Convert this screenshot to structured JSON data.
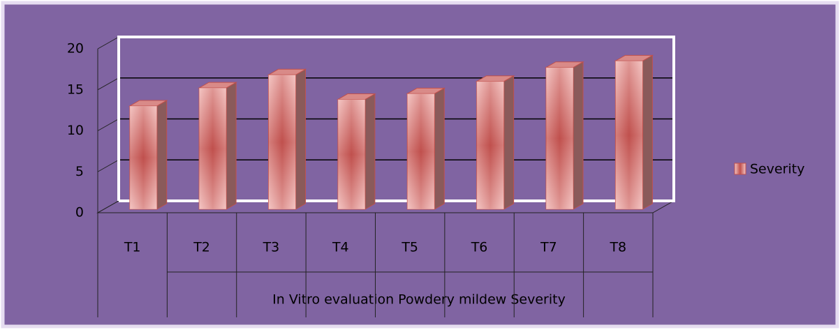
{
  "chart_data": {
    "type": "bar3d",
    "categories": [
      "T1",
      "T2",
      "T3",
      "T4",
      "T5",
      "T6",
      "T7",
      "T8"
    ],
    "series": [
      {
        "name": "Severity",
        "color": "#c0504d",
        "values": [
          12.6,
          14.8,
          16.4,
          13.4,
          14.1,
          15.6,
          17.3,
          18.1
        ]
      }
    ],
    "x_label": "In Vitro evaluation Powdery mildew Severity",
    "ylim": [
      0,
      20
    ],
    "yticks": [
      0,
      5,
      10,
      15,
      20
    ],
    "grid": true,
    "legend": "right"
  }
}
